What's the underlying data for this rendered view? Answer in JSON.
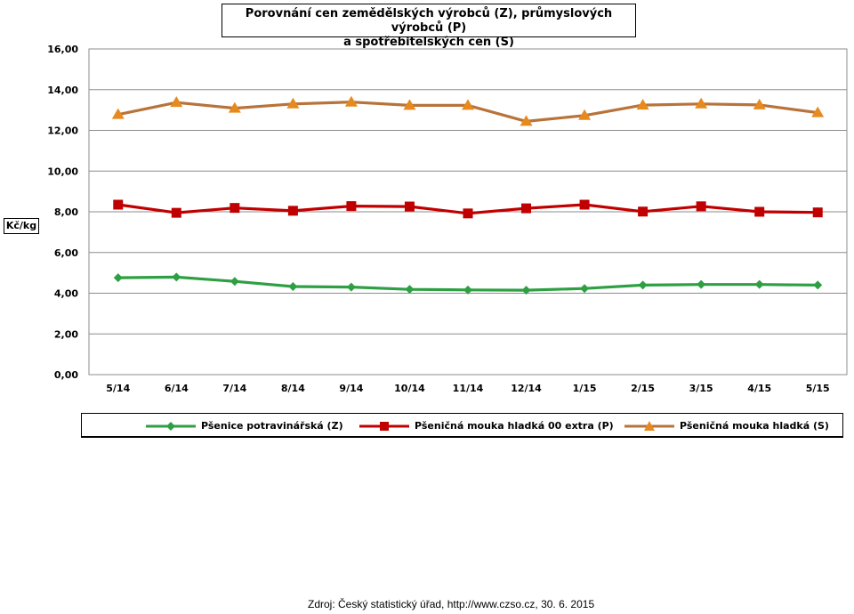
{
  "chart_data": {
    "type": "line",
    "title_line1": "Porovnání cen zemědělských výrobců (Z), průmyslových výrobců (P)",
    "title_line2": "a spotřebitelských cen (S)",
    "ylabel": "Kč/kg",
    "xlabel": "",
    "ylim": [
      0,
      16
    ],
    "yticks": [
      "0,00",
      "2,00",
      "4,00",
      "6,00",
      "8,00",
      "10,00",
      "12,00",
      "14,00",
      "16,00"
    ],
    "grid": true,
    "legend_position": "bottom",
    "categories": [
      "5/14",
      "6/14",
      "7/14",
      "8/14",
      "9/14",
      "10/14",
      "11/14",
      "12/14",
      "1/15",
      "2/15",
      "3/15",
      "4/15",
      "5/15"
    ],
    "series": [
      {
        "name": "Pšenice potravinářská (Z)",
        "color": "#2ea043",
        "marker": "diamond",
        "values": [
          4.76,
          4.79,
          4.58,
          4.33,
          4.3,
          4.19,
          4.16,
          4.15,
          4.23,
          4.4,
          4.43,
          4.43,
          4.4
        ]
      },
      {
        "name": "Pšeničná mouka hladká 00 extra (P)",
        "color": "#c00000",
        "marker": "square",
        "values": [
          8.35,
          7.95,
          8.19,
          8.05,
          8.28,
          8.26,
          7.92,
          8.17,
          8.35,
          8.01,
          8.27,
          8.0,
          7.97
        ]
      },
      {
        "name": "Pšeničná mouka hladká (S)",
        "color": "#b8733a",
        "marker": "triangle",
        "values": [
          12.78,
          13.37,
          13.09,
          13.3,
          13.39,
          13.23,
          13.23,
          12.44,
          12.73,
          13.24,
          13.3,
          13.25,
          12.87
        ]
      }
    ]
  },
  "source": "Zdroj: Český statistický úřad, http://www.czso.cz, 30. 6. 2015"
}
